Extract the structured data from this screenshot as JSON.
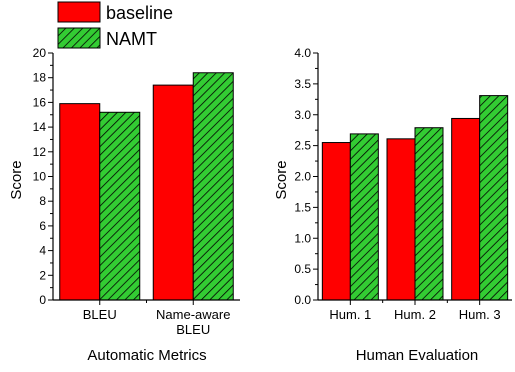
{
  "legend": [
    {
      "name": "baseline",
      "color": "#ff0000",
      "pattern": "solid"
    },
    {
      "name": "NAMT",
      "color": "#33cc33",
      "pattern": "hatch"
    }
  ],
  "chart_data": [
    {
      "type": "bar",
      "title": "",
      "xlabel": "Automatic Metrics",
      "ylabel": "Score",
      "categories": [
        "BLEU",
        "Name-aware BLEU"
      ],
      "ylim": [
        0,
        20
      ],
      "yticks": [
        "0",
        "2",
        "4",
        "6",
        "8",
        "10",
        "12",
        "14",
        "16",
        "18",
        "20"
      ],
      "series": [
        {
          "name": "baseline",
          "values": [
            15.9,
            17.4
          ]
        },
        {
          "name": "NAMT",
          "values": [
            15.2,
            18.4
          ]
        }
      ]
    },
    {
      "type": "bar",
      "title": "",
      "xlabel": "Human Evaluation",
      "ylabel": "Score",
      "categories": [
        "Hum. 1",
        "Hum. 2",
        "Hum. 3"
      ],
      "ylim": [
        0,
        4
      ],
      "yticks": [
        "0.0",
        "0.5",
        "1.0",
        "1.5",
        "2.0",
        "2.5",
        "3.0",
        "3.5",
        "4.0"
      ],
      "series": [
        {
          "name": "baseline",
          "values": [
            2.55,
            2.61,
            2.94
          ]
        },
        {
          "name": "NAMT",
          "values": [
            2.69,
            2.79,
            3.31
          ]
        }
      ]
    }
  ]
}
